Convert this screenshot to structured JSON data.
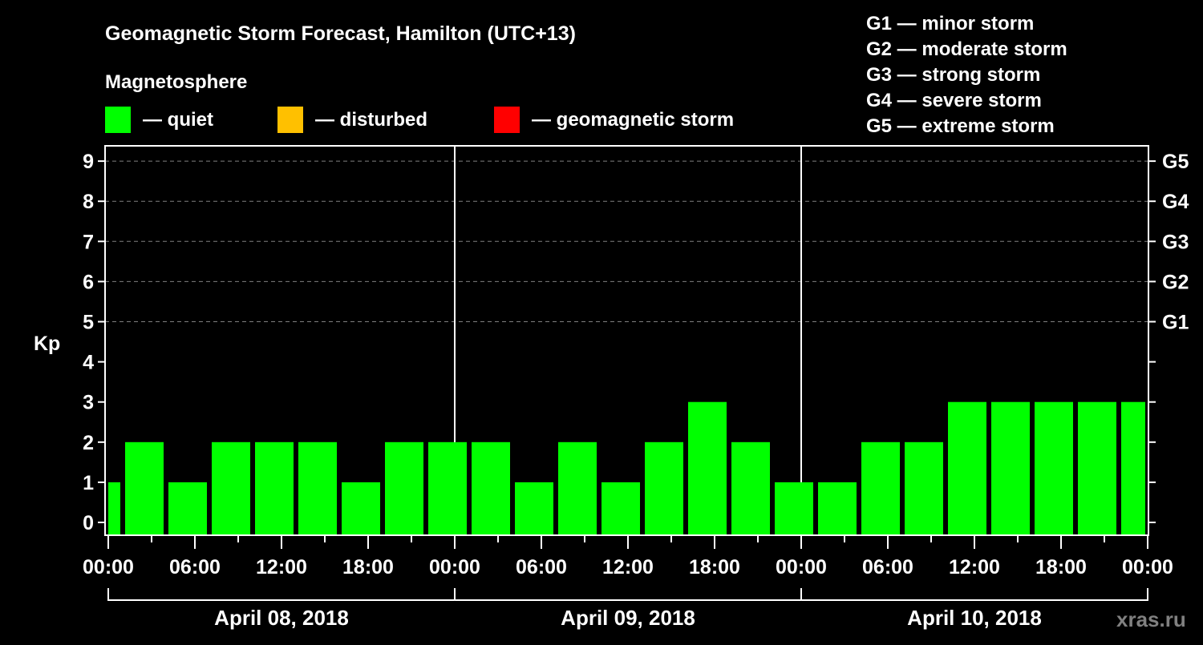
{
  "chart_data": {
    "type": "bar",
    "title": "Geomagnetic Storm Forecast, Hamilton (UTC+13)",
    "legend_title": "Magnetosphere",
    "legend": [
      {
        "label": "— quiet",
        "color": "#00ff00"
      },
      {
        "label": "— disturbed",
        "color": "#ffc000"
      },
      {
        "label": "— geomagnetic storm",
        "color": "#ff0000"
      }
    ],
    "storm_scale": [
      "G1 — minor storm",
      "G2 — moderate storm",
      "G3 — strong storm",
      "G4 — severe storm",
      "G5 — extreme storm"
    ],
    "ylabel": "Kp",
    "ylim": [
      0,
      9
    ],
    "yticks": [
      "0",
      "1",
      "2",
      "3",
      "4",
      "5",
      "6",
      "7",
      "8",
      "9"
    ],
    "right_ticks": [
      {
        "kp": 5,
        "label": "G1"
      },
      {
        "kp": 6,
        "label": "G2"
      },
      {
        "kp": 7,
        "label": "G3"
      },
      {
        "kp": 8,
        "label": "G4"
      },
      {
        "kp": 9,
        "label": "G5"
      }
    ],
    "xlim_hours": [
      0,
      72
    ],
    "xtick_labels": [
      "00:00",
      "06:00",
      "12:00",
      "18:00",
      "00:00",
      "06:00",
      "12:00",
      "18:00",
      "00:00",
      "06:00",
      "12:00",
      "18:00",
      "00:00"
    ],
    "days": [
      "April 08, 2018",
      "April 09, 2018",
      "April 10, 2018"
    ],
    "bar_interval_hours": 3,
    "first_bar_start_hour": -2,
    "values": [
      1,
      2,
      1,
      2,
      2,
      2,
      1,
      2,
      2,
      2,
      1,
      2,
      1,
      2,
      3,
      2,
      1,
      1,
      2,
      2,
      3,
      3,
      3,
      3,
      3
    ],
    "bar_color": "#00ff00",
    "grid": "dashed at Kp 5-9"
  },
  "watermark": "xras.ru"
}
